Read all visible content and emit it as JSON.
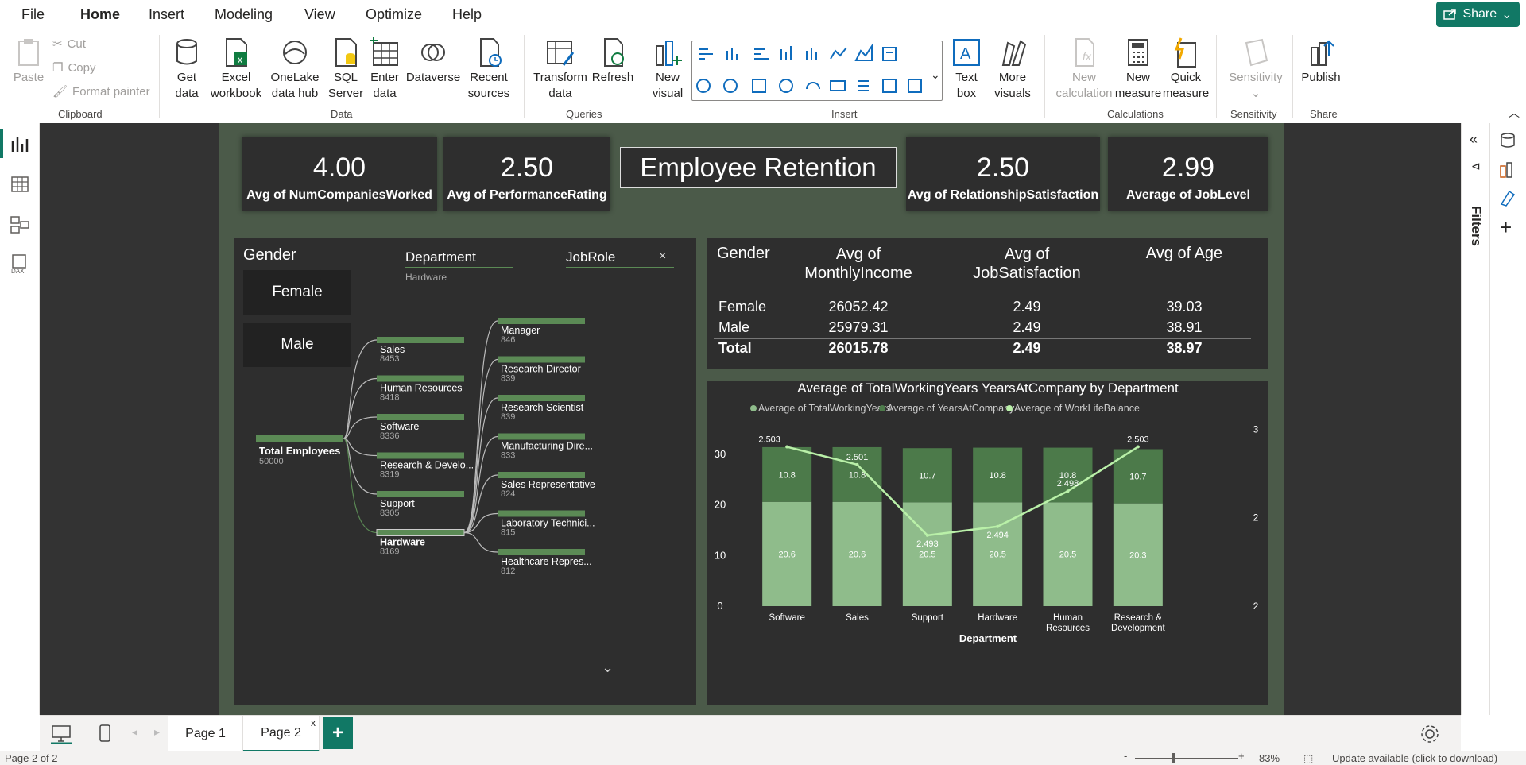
{
  "menu": {
    "file": "File",
    "home": "Home",
    "insert": "Insert",
    "modeling": "Modeling",
    "view": "View",
    "optimize": "Optimize",
    "help": "Help",
    "share": "Share"
  },
  "ribbon": {
    "paste": "Paste",
    "cut": "Cut",
    "copy": "Copy",
    "format_painter": "Format painter",
    "clipboard": "Clipboard",
    "get_data": [
      "Get",
      "data"
    ],
    "excel": [
      "Excel",
      "workbook"
    ],
    "onelake": [
      "OneLake",
      "data hub"
    ],
    "sql": [
      "SQL",
      "Server"
    ],
    "enter_data": [
      "Enter",
      "data"
    ],
    "dataverse": "Dataverse",
    "recent": [
      "Recent",
      "sources"
    ],
    "data_group": "Data",
    "transform": [
      "Transform",
      "data"
    ],
    "refresh": "Refresh",
    "queries": "Queries",
    "new_visual": [
      "New",
      "visual"
    ],
    "text_box": [
      "Text",
      "box"
    ],
    "more_visuals": [
      "More",
      "visuals"
    ],
    "insert_group": "Insert",
    "new_calc": [
      "New",
      "calculation"
    ],
    "new_measure": [
      "New",
      "measure"
    ],
    "quick_measure": [
      "Quick",
      "measure"
    ],
    "calculations": "Calculations",
    "sensitivity": "Sensitivity",
    "sensitivity_group": "Sensitivity",
    "publish": "Publish",
    "share_group": "Share"
  },
  "filters_label": "Filters",
  "cards": [
    {
      "value": "4.00",
      "label": "Avg of NumCompaniesWorked"
    },
    {
      "value": "2.50",
      "label": "Avg of PerformanceRating"
    },
    {
      "value": "2.50",
      "label": "Avg of RelationshipSatisfaction"
    },
    {
      "value": "2.99",
      "label": "Average of JobLevel"
    }
  ],
  "report_title": "Employee Retention",
  "slicer": {
    "title": "Gender",
    "options": [
      "Female",
      "Male"
    ]
  },
  "tree": {
    "dept_header": "Department",
    "dept_sub": "Hardware",
    "role_header": "JobRole",
    "close": "×",
    "root": {
      "label": "Total Employees",
      "value": "50000"
    },
    "departments": [
      {
        "label": "Sales",
        "value": "8453"
      },
      {
        "label": "Human Resources",
        "value": "8418"
      },
      {
        "label": "Software",
        "value": "8336"
      },
      {
        "label": "Research & Develo...",
        "value": "8319"
      },
      {
        "label": "Support",
        "value": "8305"
      },
      {
        "label": "Hardware",
        "value": "8169"
      }
    ],
    "roles": [
      {
        "label": "Manager",
        "value": "846"
      },
      {
        "label": "Research Director",
        "value": "839"
      },
      {
        "label": "Research Scientist",
        "value": "839"
      },
      {
        "label": "Manufacturing Dire...",
        "value": "833"
      },
      {
        "label": "Sales Representative",
        "value": "824"
      },
      {
        "label": "Laboratory Technici...",
        "value": "815"
      },
      {
        "label": "Healthcare Repres...",
        "value": "812"
      }
    ]
  },
  "table": {
    "headers": [
      "Gender",
      [
        "Avg of",
        "MonthlyIncome"
      ],
      [
        "Avg of",
        "JobSatisfaction"
      ],
      "Avg of Age"
    ],
    "rows": [
      [
        "Female",
        "26052.42",
        "2.49",
        "39.03"
      ],
      [
        "Male",
        "25979.31",
        "2.49",
        "38.91"
      ]
    ],
    "total": [
      "Total",
      "26015.78",
      "2.49",
      "38.97"
    ]
  },
  "chart_data": {
    "type": "bar",
    "title": "Average of TotalWorkingYears YearsAtCompany by Department",
    "xlabel": "Department",
    "categories": [
      "Software",
      "Sales",
      "Support",
      "Hardware",
      "Human Resources",
      "Research & Development"
    ],
    "series": [
      {
        "name": "Average of TotalWorkingYears",
        "values": [
          20.6,
          20.6,
          20.5,
          20.5,
          20.5,
          20.3
        ],
        "color": "#8fbc8b"
      },
      {
        "name": "Average of YearsAtCompany",
        "values": [
          10.8,
          10.8,
          10.7,
          10.8,
          10.8,
          10.7
        ],
        "color": "#4c7a4a"
      },
      {
        "name": "Average of WorkLifeBalance",
        "values": [
          2.503,
          2.501,
          2.493,
          2.494,
          2.498,
          2.503
        ],
        "color": "#b9f0a8",
        "axis": "secondary"
      }
    ],
    "y_ticks": [
      "0",
      "10",
      "20",
      "30"
    ],
    "y2_ticks": [
      "2",
      "2",
      "3"
    ],
    "ylim": [
      0,
      35
    ]
  },
  "pages": {
    "page1": "Page 1",
    "page2": "Page 2",
    "add": "+",
    "close": "x"
  },
  "status": {
    "page": "Page 2 of 2",
    "zoom": "83%",
    "update": "Update available (click to download)"
  }
}
